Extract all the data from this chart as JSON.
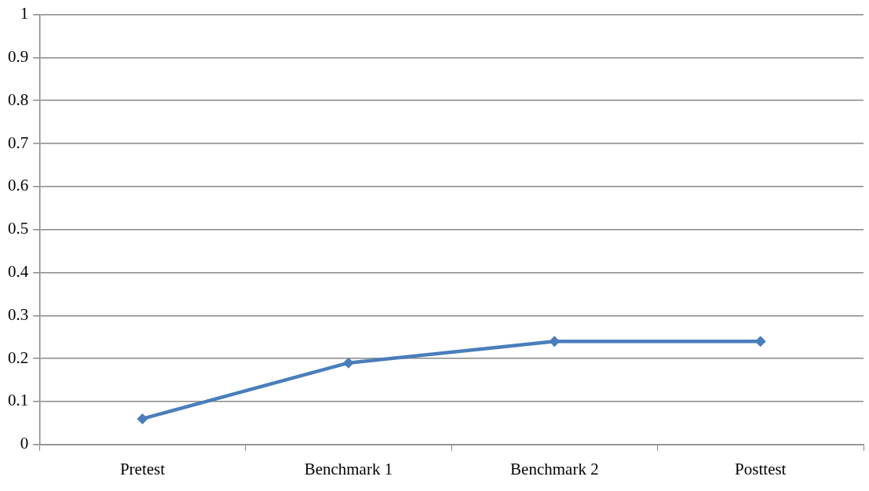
{
  "chart_data": {
    "type": "line",
    "categories": [
      "Pretest",
      "Benchmark 1",
      "Benchmark 2",
      "Posttest"
    ],
    "series": [
      {
        "color": "#4a7ebb",
        "values": [
          0.06,
          0.19,
          0.24,
          0.24
        ]
      }
    ],
    "ylim": [
      0,
      1
    ],
    "yticks": [
      0,
      0.1,
      0.2,
      0.3,
      0.4,
      0.5,
      0.6,
      0.7,
      0.8,
      0.9,
      1
    ],
    "grid": "y",
    "legend": false,
    "marker": "diamond",
    "line_style": "solid"
  }
}
